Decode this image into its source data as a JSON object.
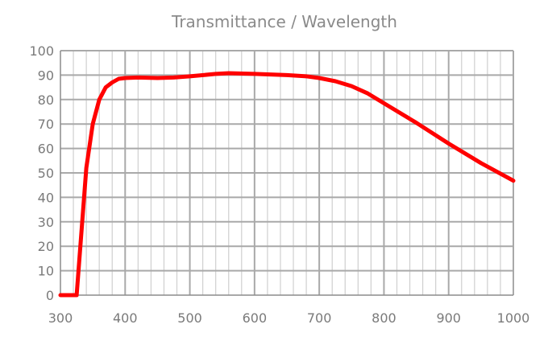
{
  "chart_data": {
    "type": "line",
    "title": "Transmittance / Wavelength",
    "xlabel": "",
    "ylabel": "",
    "xlim": [
      300,
      1000
    ],
    "ylim": [
      0,
      100
    ],
    "x_ticks": [
      "300",
      "400",
      "500",
      "600",
      "700",
      "800",
      "900",
      "1000"
    ],
    "y_ticks": [
      "0",
      "10",
      "20",
      "30",
      "40",
      "50",
      "60",
      "70",
      "80",
      "90",
      "100"
    ],
    "grid": true,
    "series": [
      {
        "name": "Transmittance",
        "color": "#ff0000",
        "x": [
          300,
          320,
          325,
          340,
          350,
          360,
          370,
          380,
          390,
          400,
          420,
          450,
          475,
          500,
          540,
          560,
          600,
          650,
          680,
          700,
          725,
          750,
          775,
          800,
          850,
          900,
          950,
          1000
        ],
        "y": [
          0,
          0,
          0,
          52,
          70,
          80,
          85,
          87,
          88.5,
          88.8,
          89,
          88.8,
          89,
          89.5,
          90.5,
          90.8,
          90.5,
          90,
          89.5,
          88.8,
          87.5,
          85.5,
          82.5,
          78.5,
          70.5,
          62,
          54,
          46.8
        ]
      }
    ]
  }
}
